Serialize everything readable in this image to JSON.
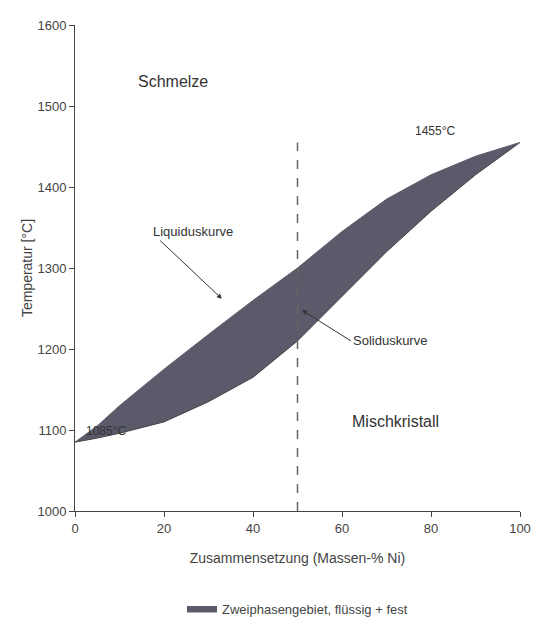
{
  "chart_data": {
    "type": "line",
    "xlabel": "Zusammensetzung (Massen-% Ni)",
    "ylabel": "Temperatur [°C]",
    "xlim": [
      0,
      100
    ],
    "ylim": [
      1000,
      1600
    ],
    "xticks": [
      0,
      20,
      40,
      60,
      80,
      100
    ],
    "yticks": [
      1000,
      1100,
      1200,
      1300,
      1400,
      1500,
      1600
    ],
    "grid": false,
    "legend": "bottom",
    "x": [
      0,
      5,
      10,
      20,
      30,
      40,
      50,
      60,
      70,
      80,
      90,
      100
    ],
    "series": [
      {
        "type": "line",
        "color": "#444444",
        "line_style": "solid",
        "values": [
          1085,
          1090,
          1096,
          1110,
          1135,
          1165,
          1210,
          1265,
          1320,
          1370,
          1415,
          1455
        ]
      },
      {
        "name": "Zweiphasengebiet, flüssig + fest",
        "type": "area",
        "color": "#5a5a6a",
        "line_style": "solid",
        "values": [
          1085,
          1105,
          1130,
          1175,
          1218,
          1260,
          1300,
          1345,
          1385,
          1415,
          1438,
          1455
        ]
      },
      {
        "type": "line",
        "color": "#666666",
        "line_style": "dashed",
        "x": [
          50,
          50
        ],
        "values": [
          1000,
          1455
        ]
      }
    ],
    "annotations": [
      {
        "text": "Schmelze",
        "x": 22,
        "y": 1530
      },
      {
        "text": "Mischkristall",
        "x": 72,
        "y": 1110
      },
      {
        "text": "Liquiduskurve",
        "x": 17,
        "y": 1345,
        "arrow_to": [
          33,
          1262
        ]
      },
      {
        "text": "Soliduskurve",
        "x": 62,
        "y": 1210,
        "arrow_to": [
          51,
          1248
        ]
      },
      {
        "text": "1085°C",
        "x": 2,
        "y": 1088
      },
      {
        "text": "1455°C",
        "x": 76,
        "y": 1458
      }
    ]
  }
}
